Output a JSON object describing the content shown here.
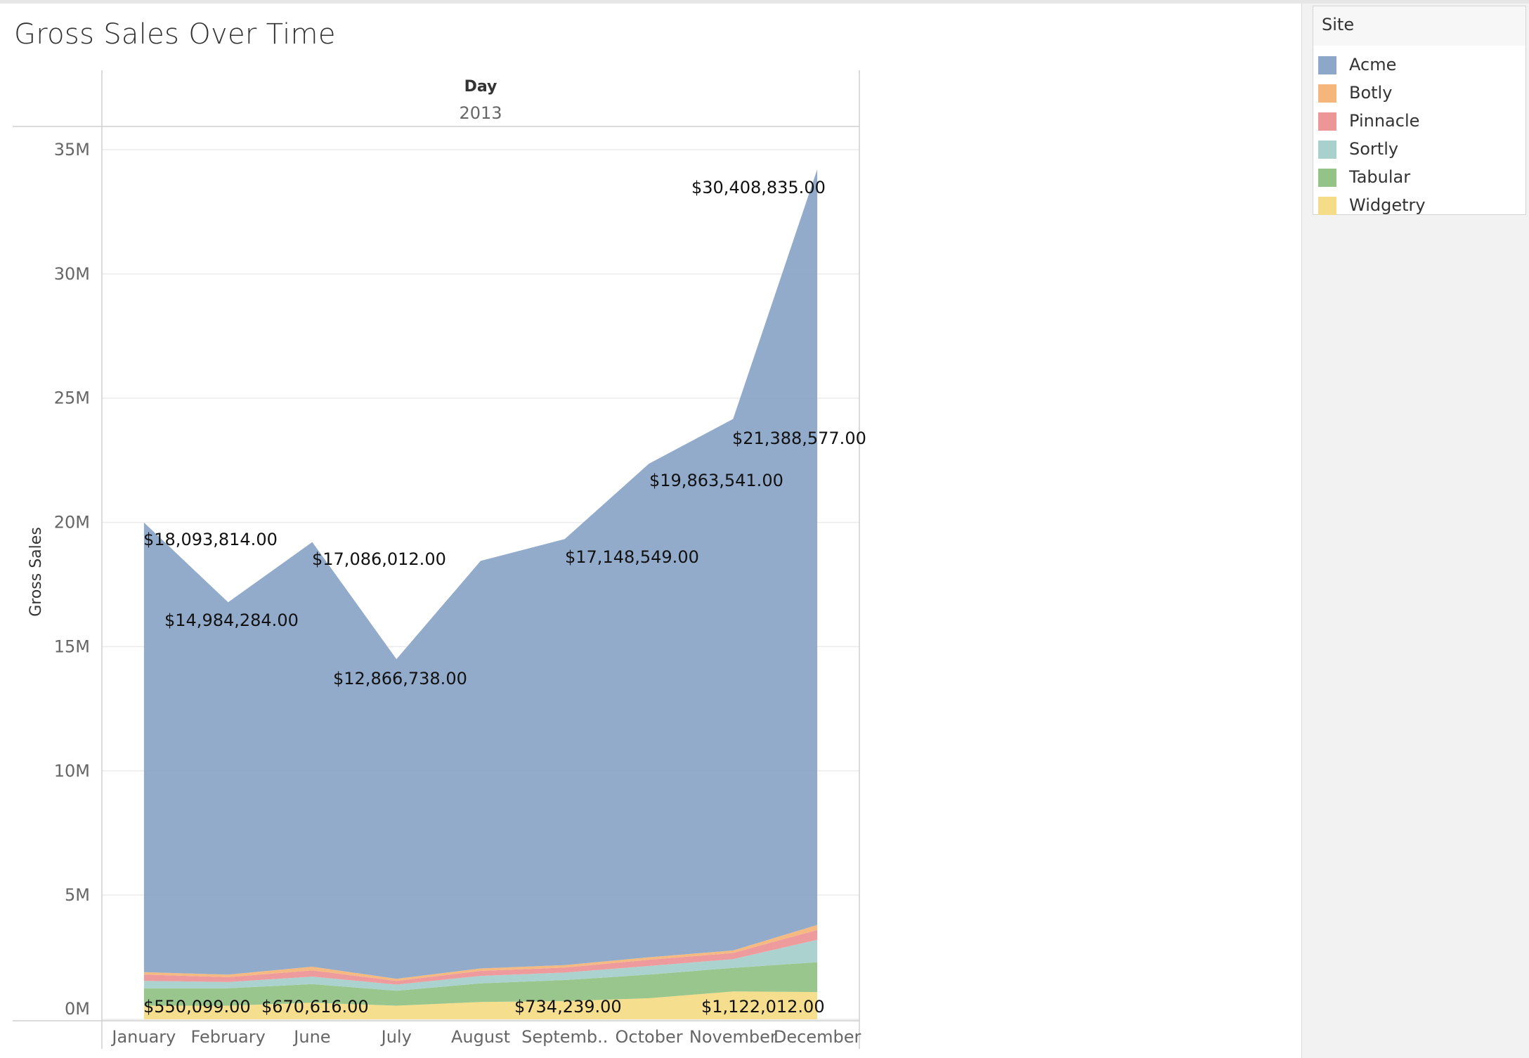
{
  "title": "Gross Sales Over Time",
  "legend": {
    "title": "Site",
    "items": [
      {
        "label": "Acme",
        "color": "#8ca7c8"
      },
      {
        "label": "Botly",
        "color": "#f4b67a"
      },
      {
        "label": "Pinnacle",
        "color": "#ec9698"
      },
      {
        "label": "Sortly",
        "color": "#a8d0cc"
      },
      {
        "label": "Tabular",
        "color": "#93c387"
      },
      {
        "label": "Widgetry",
        "color": "#f4dc88"
      }
    ]
  },
  "chart_data": {
    "type": "area",
    "stacked": true,
    "title": "Gross Sales Over Time",
    "column_header": "Day",
    "column_header_value": "2013",
    "ylabel": "Gross Sales",
    "xlabel": "",
    "ylim": [
      0,
      35000000
    ],
    "yticks": [
      "0M",
      "5M",
      "10M",
      "15M",
      "20M",
      "25M",
      "30M",
      "35M"
    ],
    "grid": true,
    "categories": [
      "January",
      "February",
      "June",
      "July",
      "August",
      "Septemb..",
      "October",
      "November",
      "December"
    ],
    "series": [
      {
        "name": "Widgetry",
        "color": "#f4dc88",
        "values": [
          550099,
          550000,
          670616,
          550000,
          700000,
          734239,
          850000,
          1122012,
          1100000
        ]
      },
      {
        "name": "Tabular",
        "color": "#93c387",
        "values": [
          700000,
          700000,
          750000,
          600000,
          750000,
          850000,
          950000,
          950000,
          1200000
        ]
      },
      {
        "name": "Sortly",
        "color": "#a8d0cc",
        "values": [
          300000,
          250000,
          300000,
          250000,
          300000,
          300000,
          350000,
          350000,
          900000
        ]
      },
      {
        "name": "Pinnacle",
        "color": "#ec9698",
        "values": [
          250000,
          200000,
          250000,
          150000,
          200000,
          200000,
          250000,
          250000,
          400000
        ]
      },
      {
        "name": "Botly",
        "color": "#f4b67a",
        "values": [
          100000,
          100000,
          150000,
          80000,
          100000,
          100000,
          100000,
          100000,
          200000
        ]
      },
      {
        "name": "Acme",
        "color": "#8ca7c8",
        "values": [
          18093814,
          14984284,
          17086012,
          12866738,
          16400000,
          17148549,
          19863541,
          21388577,
          30408835
        ]
      }
    ],
    "top_series_labels": [
      {
        "category": "January",
        "text": "$18,093,814.00"
      },
      {
        "category": "February",
        "text": "$14,984,284.00"
      },
      {
        "category": "June",
        "text": "$17,086,012.00"
      },
      {
        "category": "July",
        "text": "$12,866,738.00"
      },
      {
        "category": "Septemb..",
        "text": "$17,148,549.00"
      },
      {
        "category": "October",
        "text": "$19,863,541.00"
      },
      {
        "category": "November",
        "text": "$21,388,577.00"
      },
      {
        "category": "December",
        "text": "$30,408,835.00"
      }
    ],
    "bottom_series_labels": [
      {
        "category": "January",
        "text": "$550,099.00"
      },
      {
        "category": "June",
        "text": "$670,616.00"
      },
      {
        "category": "Septemb..",
        "text": "$734,239.00"
      },
      {
        "category": "November",
        "text": "$1,122,012.00"
      }
    ]
  }
}
